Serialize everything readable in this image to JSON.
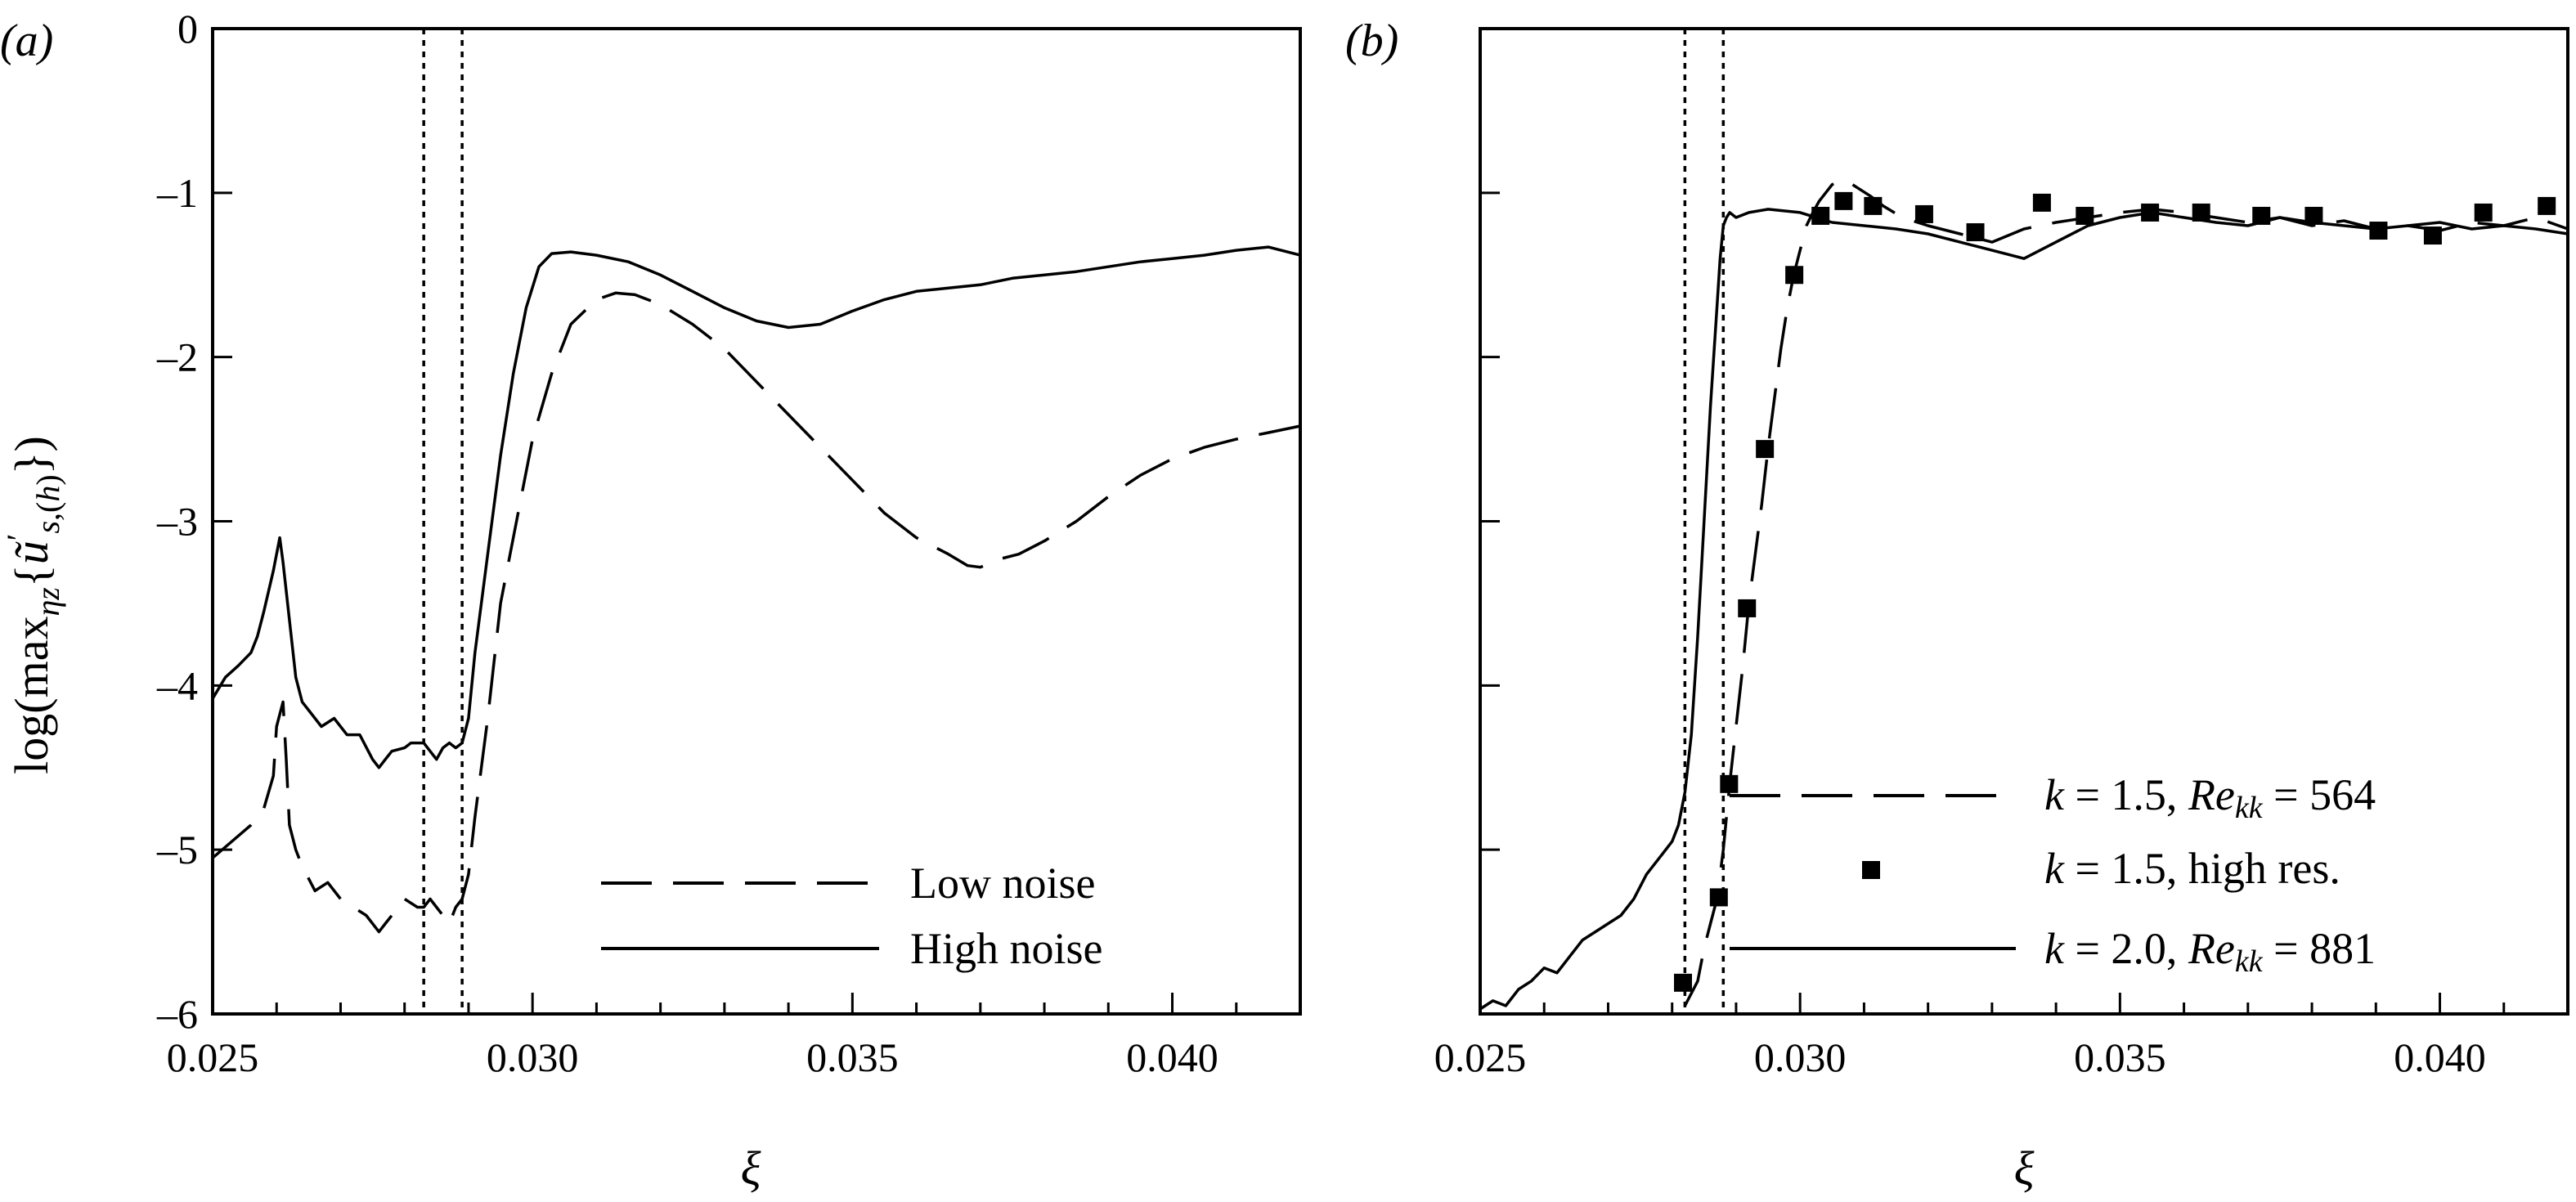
{
  "chart_data": [
    {
      "panel": "(a)",
      "type": "line",
      "xlabel": "ξ",
      "ylabel": "log(max_{ηz}{ũ′_{s,(h)}})",
      "xlim": [
        0.025,
        0.042
      ],
      "ylim": [
        -6,
        0
      ],
      "xticks": [
        "0.025",
        "0.030",
        "0.035",
        "0.040"
      ],
      "yticks": [
        "0",
        "–1",
        "–2",
        "–3",
        "–4",
        "–5",
        "–6"
      ],
      "vlines": [
        0.0283,
        0.0289
      ],
      "series": [
        {
          "name": "Low noise",
          "style": "dashed",
          "x": [
            0.025,
            0.0253,
            0.0256,
            0.0258,
            0.02595,
            0.026,
            0.0261,
            0.02615,
            0.0262,
            0.0263,
            0.0264,
            0.0266,
            0.0268,
            0.027,
            0.0272,
            0.0274,
            0.0276,
            0.0277,
            0.0278,
            0.028,
            0.0282,
            0.0283,
            0.0284,
            0.0285,
            0.0286,
            0.0287,
            0.0288,
            0.0289,
            0.029,
            0.0291,
            0.0293,
            0.0295,
            0.0298,
            0.03,
            0.0303,
            0.0306,
            0.031,
            0.0313,
            0.0316,
            0.032,
            0.0325,
            0.033,
            0.0335,
            0.034,
            0.0345,
            0.035,
            0.0355,
            0.036,
            0.0365,
            0.0368,
            0.037,
            0.0373,
            0.0376,
            0.038,
            0.0385,
            0.039,
            0.0395,
            0.04,
            0.0405,
            0.041,
            0.0415,
            0.042
          ],
          "y": [
            -5.05,
            -4.95,
            -4.85,
            -4.75,
            -4.55,
            -4.25,
            -4.1,
            -4.45,
            -4.85,
            -5.0,
            -5.1,
            -5.25,
            -5.2,
            -5.3,
            -5.35,
            -5.4,
            -5.5,
            -5.45,
            -5.4,
            -5.3,
            -5.35,
            -5.35,
            -5.3,
            -5.35,
            -5.4,
            -5.45,
            -5.35,
            -5.3,
            -5.15,
            -4.8,
            -4.2,
            -3.5,
            -2.9,
            -2.5,
            -2.1,
            -1.8,
            -1.65,
            -1.61,
            -1.62,
            -1.68,
            -1.8,
            -1.95,
            -2.15,
            -2.35,
            -2.55,
            -2.75,
            -2.95,
            -3.1,
            -3.2,
            -3.27,
            -3.28,
            -3.23,
            -3.2,
            -3.12,
            -3.0,
            -2.85,
            -2.72,
            -2.62,
            -2.55,
            -2.5,
            -2.46,
            -2.42
          ]
        },
        {
          "name": "High noise",
          "style": "solid",
          "x": [
            0.025,
            0.0252,
            0.0254,
            0.0256,
            0.0257,
            0.0258,
            0.02595,
            0.026,
            0.02605,
            0.0261,
            0.0262,
            0.0263,
            0.0264,
            0.0265,
            0.0267,
            0.0269,
            0.0271,
            0.0273,
            0.0275,
            0.0276,
            0.0277,
            0.0278,
            0.028,
            0.0281,
            0.0282,
            0.0283,
            0.0284,
            0.0285,
            0.0286,
            0.0287,
            0.0288,
            0.0289,
            0.029,
            0.0291,
            0.0293,
            0.0295,
            0.0297,
            0.0299,
            0.0301,
            0.0303,
            0.0306,
            0.031,
            0.0315,
            0.032,
            0.0325,
            0.033,
            0.0335,
            0.034,
            0.0345,
            0.035,
            0.0355,
            0.036,
            0.0365,
            0.037,
            0.0375,
            0.038,
            0.0385,
            0.039,
            0.0395,
            0.04,
            0.0405,
            0.041,
            0.0415,
            0.042
          ],
          "y": [
            -4.08,
            -3.95,
            -3.88,
            -3.8,
            -3.7,
            -3.55,
            -3.3,
            -3.2,
            -3.1,
            -3.25,
            -3.6,
            -3.95,
            -4.1,
            -4.15,
            -4.25,
            -4.2,
            -4.3,
            -4.3,
            -4.45,
            -4.5,
            -4.45,
            -4.4,
            -4.38,
            -4.35,
            -4.35,
            -4.35,
            -4.4,
            -4.45,
            -4.38,
            -4.35,
            -4.38,
            -4.35,
            -4.2,
            -3.8,
            -3.2,
            -2.6,
            -2.1,
            -1.7,
            -1.45,
            -1.37,
            -1.36,
            -1.38,
            -1.42,
            -1.5,
            -1.6,
            -1.7,
            -1.78,
            -1.82,
            -1.8,
            -1.72,
            -1.65,
            -1.6,
            -1.58,
            -1.56,
            -1.52,
            -1.5,
            -1.48,
            -1.45,
            -1.42,
            -1.4,
            -1.38,
            -1.35,
            -1.33,
            -1.38
          ]
        }
      ],
      "legend": [
        "Low noise",
        "High noise"
      ]
    },
    {
      "panel": "(b)",
      "type": "line",
      "xlabel": "ξ",
      "xlim": [
        0.025,
        0.042
      ],
      "ylim": [
        -6,
        0
      ],
      "xticks": [
        "0.025",
        "0.030",
        "0.035",
        "0.040"
      ],
      "vlines": [
        0.0282,
        0.0288
      ],
      "series": [
        {
          "name": "k = 1.5, Re_kk = 564",
          "style": "dashed",
          "x": [
            0.0282,
            0.0284,
            0.0285,
            0.0286,
            0.0287,
            0.0288,
            0.0289,
            0.029,
            0.0291,
            0.0292,
            0.0293,
            0.0294,
            0.0295,
            0.0296,
            0.0297,
            0.0298,
            0.0299,
            0.03,
            0.0301,
            0.0302,
            0.0303,
            0.0305,
            0.0307,
            0.0309,
            0.0311,
            0.0313,
            0.0316,
            0.032,
            0.0325,
            0.033,
            0.0335,
            0.034,
            0.0345,
            0.035,
            0.0355,
            0.036,
            0.0365,
            0.037,
            0.0375,
            0.038,
            0.0385,
            0.039,
            0.0395,
            0.04,
            0.0405,
            0.041,
            0.0415,
            0.042
          ],
          "y": [
            -5.95,
            -5.8,
            -5.6,
            -5.45,
            -5.3,
            -5.0,
            -4.6,
            -4.25,
            -3.9,
            -3.5,
            -3.2,
            -2.9,
            -2.55,
            -2.25,
            -1.95,
            -1.7,
            -1.5,
            -1.35,
            -1.2,
            -1.12,
            -1.05,
            -0.95,
            -0.92,
            -0.97,
            -1.02,
            -1.08,
            -1.15,
            -1.2,
            -1.25,
            -1.3,
            -1.22,
            -1.18,
            -1.15,
            -1.12,
            -1.1,
            -1.12,
            -1.15,
            -1.18,
            -1.15,
            -1.2,
            -1.17,
            -1.22,
            -1.2,
            -1.23,
            -1.18,
            -1.2,
            -1.15,
            -1.22
          ]
        },
        {
          "name": "k = 1.5, high res.",
          "style": "markers",
          "x": [
            0.02817,
            0.02873,
            0.02889,
            0.02917,
            0.02945,
            0.02991,
            0.03032,
            0.03068,
            0.03114,
            0.03194,
            0.03274,
            0.03378,
            0.03445,
            0.03547,
            0.03627,
            0.03721,
            0.03803,
            0.03904,
            0.03989,
            0.04068,
            0.04167
          ],
          "y": [
            -5.81,
            -5.29,
            -4.6,
            -3.53,
            -2.56,
            -1.5,
            -1.14,
            -1.05,
            -1.08,
            -1.13,
            -1.24,
            -1.06,
            -1.14,
            -1.12,
            -1.12,
            -1.14,
            -1.14,
            -1.23,
            -1.26,
            -1.12,
            -1.08
          ]
        },
        {
          "name": "k = 2.0, Re_kk = 881",
          "style": "solid",
          "x": [
            0.025,
            0.0252,
            0.0254,
            0.0256,
            0.0258,
            0.026,
            0.0262,
            0.0264,
            0.0266,
            0.0268,
            0.027,
            0.0272,
            0.0274,
            0.0276,
            0.0278,
            0.028,
            0.0281,
            0.0282,
            0.0283,
            0.0284,
            0.0285,
            0.0286,
            0.0287,
            0.02875,
            0.0288,
            0.02885,
            0.0289,
            0.029,
            0.0292,
            0.0295,
            0.03,
            0.0305,
            0.031,
            0.0315,
            0.032,
            0.0325,
            0.033,
            0.0335,
            0.034,
            0.0345,
            0.035,
            0.0355,
            0.036,
            0.0365,
            0.037,
            0.0375,
            0.038,
            0.0385,
            0.039,
            0.0395,
            0.04,
            0.0405,
            0.041,
            0.0415,
            0.042
          ],
          "y": [
            -5.97,
            -5.92,
            -5.95,
            -5.85,
            -5.8,
            -5.72,
            -5.75,
            -5.65,
            -5.55,
            -5.5,
            -5.45,
            -5.4,
            -5.3,
            -5.15,
            -5.05,
            -4.95,
            -4.85,
            -4.65,
            -4.3,
            -3.7,
            -3.0,
            -2.3,
            -1.7,
            -1.4,
            -1.2,
            -1.15,
            -1.12,
            -1.15,
            -1.12,
            -1.1,
            -1.12,
            -1.18,
            -1.2,
            -1.22,
            -1.25,
            -1.3,
            -1.35,
            -1.4,
            -1.3,
            -1.2,
            -1.15,
            -1.12,
            -1.15,
            -1.18,
            -1.2,
            -1.15,
            -1.18,
            -1.2,
            -1.22,
            -1.2,
            -1.18,
            -1.22,
            -1.2,
            -1.22,
            -1.25
          ]
        }
      ],
      "legend": [
        "k = 1.5, Re_kk = 564",
        "k = 1.5, high res.",
        "k = 2.0, Re_kk = 881"
      ]
    }
  ],
  "labels": {
    "panel_a": "(a)",
    "panel_b": "(b)",
    "xlabel_a": "ξ",
    "xlabel_b": "ξ",
    "legend_a_low": "Low noise",
    "legend_a_high": "High noise",
    "legend_b1_k": "k",
    "legend_b1_val": "= 1.5,",
    "legend_b1_re": "Re",
    "legend_b1_sub": "kk",
    "legend_b1_num": "= 564",
    "legend_b2_k": "k",
    "legend_b2_val": "= 1.5, high res.",
    "legend_b3_k": "k",
    "legend_b3_val": "= 2.0,",
    "legend_b3_re": "Re",
    "legend_b3_sub": "kk",
    "legend_b3_num": "= 881"
  }
}
